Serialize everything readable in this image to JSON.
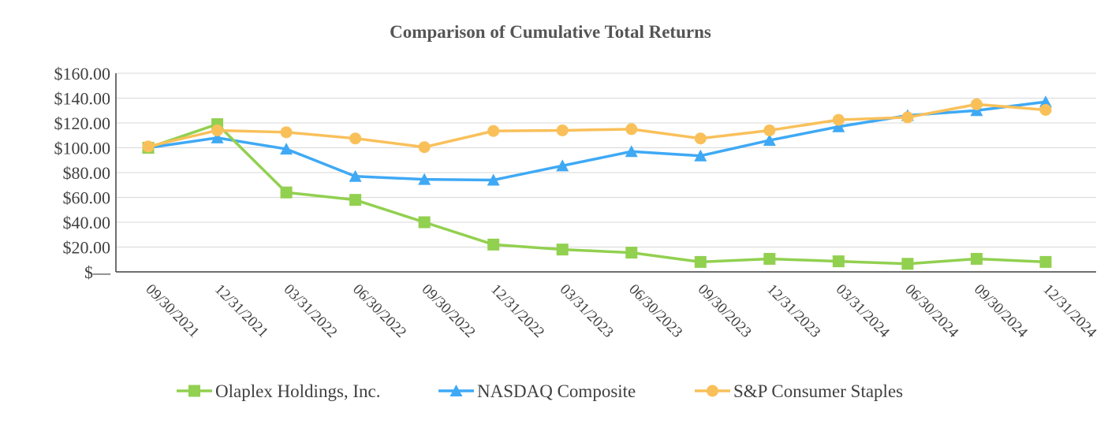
{
  "chart_data": {
    "type": "line",
    "title": "Comparison of Cumulative Total Returns",
    "xlabel": "",
    "ylabel": "",
    "categories": [
      "09/30/2021",
      "12/31/2021",
      "03/31/2022",
      "06/30/2022",
      "09/30/2022",
      "12/31/2022",
      "03/31/2023",
      "06/30/2023",
      "09/30/2023",
      "12/31/2023",
      "03/31/2024",
      "06/30/2024",
      "09/30/2024",
      "12/31/2024"
    ],
    "ylim": [
      0,
      160
    ],
    "yticks": [
      0,
      20,
      40,
      60,
      80,
      100,
      120,
      140,
      160
    ],
    "ytick_labels": [
      "$—",
      "$20.00",
      "$40.00",
      "$60.00",
      "$80.00",
      "$100.00",
      "$120.00",
      "$140.00",
      "$160.00"
    ],
    "grid": "horizontal",
    "legend_position": "bottom",
    "series": [
      {
        "name": "Olaplex Holdings, Inc.",
        "color": "#92d050",
        "marker": "square",
        "values": [
          100,
          119,
          64,
          58,
          40,
          22,
          18,
          15.5,
          8,
          10.5,
          8.5,
          6.5,
          10.5,
          8
        ]
      },
      {
        "name": "NASDAQ Composite",
        "color": "#3fa9f5",
        "marker": "triangle",
        "values": [
          100,
          108,
          99,
          77,
          74.5,
          74,
          85.5,
          97,
          93.5,
          106,
          117,
          126,
          130,
          137
        ]
      },
      {
        "name": "S&P Consumer Staples",
        "color": "#f9c05a",
        "marker": "circle",
        "values": [
          101,
          114,
          112.5,
          107.5,
          100.5,
          113.5,
          114,
          115,
          107.5,
          114,
          122.5,
          124.5,
          135,
          130.5
        ]
      }
    ]
  }
}
